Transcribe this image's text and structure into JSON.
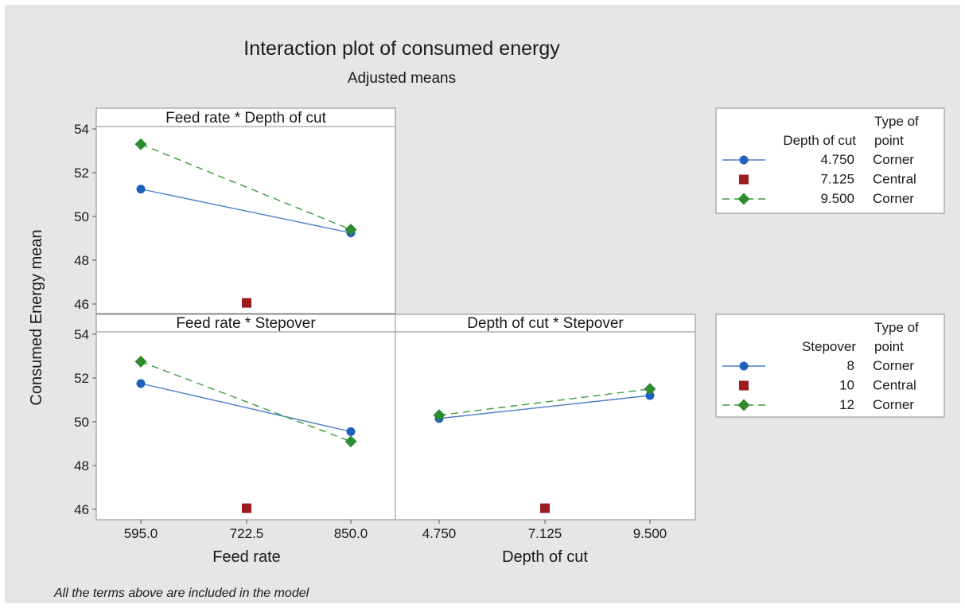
{
  "title": "Interaction plot of consumed energy",
  "subtitle": "Adjusted means",
  "ylabel": "Consumed Energy mean",
  "footnote": "All the terms above are included in the model",
  "colors": {
    "background": "#e6e6e6",
    "panel": "#ffffff",
    "series_low": "#1f5fbf",
    "series_central": "#9b1c1c",
    "series_high": "#2e8b2e",
    "line_low": "#4a7ec8",
    "line_high": "#3a9a3a"
  },
  "legends": [
    {
      "factor_header": "Depth of cut",
      "type_header": [
        "Type of",
        "point"
      ],
      "rows": [
        {
          "level": "4.750",
          "type": "Corner",
          "marker": "circle-icon",
          "line": "solid"
        },
        {
          "level": "7.125",
          "type": "Central",
          "marker": "square-icon",
          "line": "none"
        },
        {
          "level": "9.500",
          "type": "Corner",
          "marker": "diamond-icon",
          "line": "dashed"
        }
      ]
    },
    {
      "factor_header": "Stepover",
      "type_header": [
        "Type of",
        "point"
      ],
      "rows": [
        {
          "level": "8",
          "type": "Corner",
          "marker": "circle-icon",
          "line": "solid"
        },
        {
          "level": "10",
          "type": "Central",
          "marker": "square-icon",
          "line": "none"
        },
        {
          "level": "12",
          "type": "Corner",
          "marker": "diamond-icon",
          "line": "dashed"
        }
      ]
    }
  ],
  "chart_data": [
    {
      "type": "line",
      "title": "Feed rate * Depth of cut",
      "xlabel": "",
      "ylabel": "Consumed Energy mean",
      "x": [
        595.0,
        722.5,
        850.0
      ],
      "x_ticks": [],
      "y_ticks": [
        "54",
        "52",
        "50",
        "48",
        "46"
      ],
      "ylim": [
        45.6,
        54.8
      ],
      "series": [
        {
          "name": "4.750",
          "style": "solid",
          "marker": "circle",
          "values": [
            51.25,
            null,
            49.25
          ]
        },
        {
          "name": "7.125",
          "style": "none",
          "marker": "square",
          "values": [
            null,
            46.05,
            null
          ]
        },
        {
          "name": "9.500",
          "style": "dashed",
          "marker": "diamond",
          "values": [
            53.3,
            null,
            49.4
          ]
        }
      ]
    },
    {
      "type": "line",
      "title": "Feed rate * Stepover",
      "xlabel": "Feed rate",
      "ylabel": "Consumed Energy mean",
      "x": [
        595.0,
        722.5,
        850.0
      ],
      "x_ticks": [
        "595.0",
        "722.5",
        "850.0"
      ],
      "y_ticks": [
        "54",
        "52",
        "50",
        "48",
        "46"
      ],
      "ylim": [
        45.6,
        54.8
      ],
      "series": [
        {
          "name": "8",
          "style": "solid",
          "marker": "circle",
          "values": [
            51.75,
            null,
            49.55
          ]
        },
        {
          "name": "10",
          "style": "none",
          "marker": "square",
          "values": [
            null,
            46.05,
            null
          ]
        },
        {
          "name": "12",
          "style": "dashed",
          "marker": "diamond",
          "values": [
            52.75,
            null,
            49.1
          ]
        }
      ]
    },
    {
      "type": "line",
      "title": "Depth of cut * Stepover",
      "xlabel": "Depth of cut",
      "ylabel": "",
      "x": [
        4.75,
        7.125,
        9.5
      ],
      "x_ticks": [
        "4.750",
        "7.125",
        "9.500"
      ],
      "y_ticks": [],
      "ylim": [
        45.6,
        54.8
      ],
      "series": [
        {
          "name": "8",
          "style": "solid",
          "marker": "circle",
          "values": [
            50.15,
            null,
            51.2
          ]
        },
        {
          "name": "10",
          "style": "none",
          "marker": "square",
          "values": [
            null,
            46.05,
            null
          ]
        },
        {
          "name": "12",
          "style": "dashed",
          "marker": "diamond",
          "values": [
            50.3,
            null,
            51.5
          ]
        }
      ]
    }
  ]
}
